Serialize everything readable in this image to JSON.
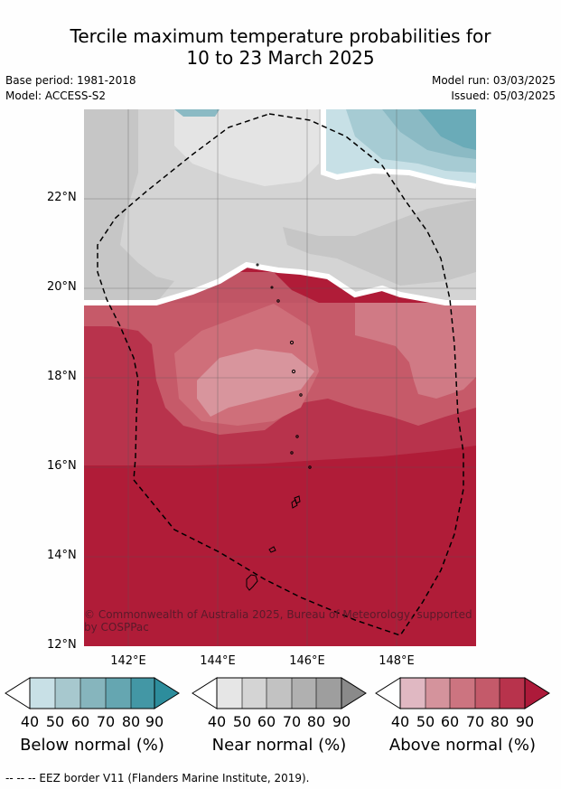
{
  "title": {
    "line1": "Tercile maximum temperature probabilities for",
    "line2": "10 to 23 March 2025"
  },
  "meta": {
    "base_period": "Base period: 1981-2018",
    "model": "Model: ACCESS-S2",
    "model_run": "Model run: 03/03/2025",
    "issued": "Issued: 05/03/2025"
  },
  "map": {
    "y_ticks": [
      "22°N",
      "20°N",
      "18°N",
      "16°N",
      "14°N",
      "12°N"
    ],
    "x_ticks": [
      "142°E",
      "144°E",
      "146°E",
      "148°E"
    ],
    "copyright": "© Commonwealth of Australia 2025, Bureau of Meteorology, supported by COSPPac",
    "colors": {
      "above_90": "#b01c38",
      "above_80": "#b8334c",
      "above_70": "#c65a69",
      "above_60": "#d07a85",
      "above_50": "#d8959d",
      "near_70": "#c6c6c6",
      "near_60": "#d4d4d4",
      "near_50": "#e4e4e4",
      "below_40": "#c7e0e6",
      "below_50": "#a6cbd3",
      "below_60": "#8bbac4",
      "below_70": "#6aabb8",
      "grey_land": "#c4c4c4"
    }
  },
  "colorbars": [
    {
      "label": "Below normal (%)",
      "ticks": [
        "40",
        "50",
        "60",
        "70",
        "80",
        "90"
      ],
      "colors": [
        "#c8e0e6",
        "#a7c8ce",
        "#86b5bd",
        "#65a6b1",
        "#4397a5",
        "#2d8d9c"
      ]
    },
    {
      "label": "Near normal (%)",
      "ticks": [
        "40",
        "50",
        "60",
        "70",
        "80",
        "90"
      ],
      "colors": [
        "#e6e6e6",
        "#d4d4d4",
        "#c2c2c2",
        "#b0b0b0",
        "#9e9e9e",
        "#8a8a8a"
      ]
    },
    {
      "label": "Above normal (%)",
      "ticks": [
        "40",
        "50",
        "60",
        "70",
        "80",
        "90"
      ],
      "colors": [
        "#e0b8c2",
        "#d4939c",
        "#cc7480",
        "#c45a6a",
        "#b8334c",
        "#ad1a3a"
      ]
    }
  ],
  "footer": "--  --  -- EEZ border V11 (Flanders Marine Institute, 2019)."
}
